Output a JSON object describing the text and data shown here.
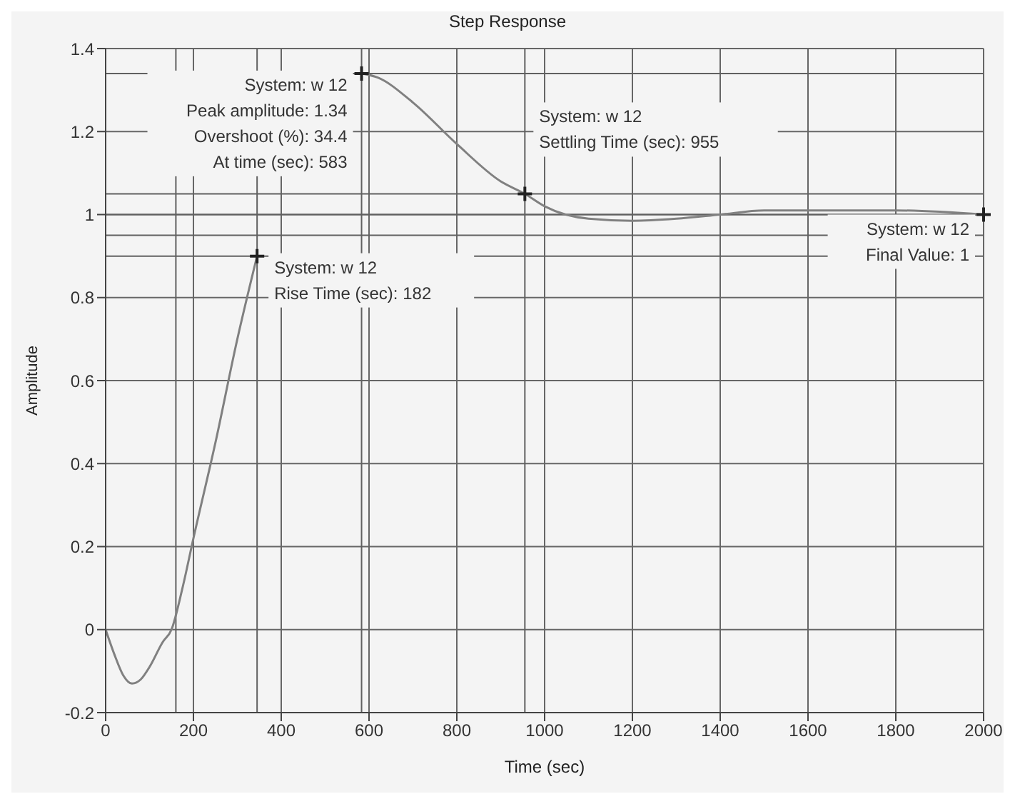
{
  "chart_data": {
    "type": "line",
    "title": "Step Response",
    "xlabel": "Time (sec)",
    "ylabel": "Amplitude",
    "x": [
      0,
      20,
      40,
      60,
      80,
      100,
      130,
      150,
      175,
      200,
      250,
      300,
      345,
      400,
      450,
      500,
      550,
      583,
      620,
      700,
      800,
      900,
      955,
      1000,
      1100,
      1200,
      1300,
      1400,
      1500,
      1600,
      1800,
      2000
    ],
    "series": [
      {
        "color": "#808080",
        "values": [
          0,
          -0.06,
          -0.11,
          -0.13,
          -0.12,
          -0.09,
          -0.03,
          0,
          0.1,
          0.22,
          0.45,
          0.7,
          0.9,
          null,
          null,
          null,
          null,
          1.34,
          1.33,
          1.27,
          1.17,
          1.08,
          1.05,
          1.02,
          0.99,
          0.985,
          0.99,
          1,
          1.01,
          1.01,
          1.01,
          1
        ]
      }
    ],
    "xlim": [
      0,
      2000
    ],
    "xticks": [
      0,
      200,
      400,
      600,
      800,
      1000,
      1200,
      1400,
      1600,
      1800,
      2000
    ],
    "ylim": [
      -0.2,
      1.4
    ],
    "yticks": [
      -0.2,
      0,
      0.2,
      0.4,
      0.6,
      0.8,
      1,
      1.2,
      1.4
    ],
    "grid": true,
    "marker": "none",
    "line_style": "solid",
    "ref_lines": [
      {
        "axis": "x",
        "value": 160,
        "color": "#606060"
      },
      {
        "axis": "x",
        "value": 345,
        "color": "#606060"
      },
      {
        "axis": "x",
        "value": 583,
        "color": "#606060"
      },
      {
        "axis": "x",
        "value": 955,
        "color": "#606060"
      },
      {
        "axis": "y",
        "value": 0.9,
        "color": "#606060"
      },
      {
        "axis": "y",
        "value": 1.34,
        "color": "#606060"
      },
      {
        "axis": "y",
        "value": 0.95,
        "color": "#606060"
      },
      {
        "axis": "y",
        "value": 1.05,
        "color": "#606060"
      },
      {
        "axis": "y",
        "value": 1,
        "color": "#606060"
      }
    ],
    "annotations": [
      {
        "text": "System: w 12\nPeak amplitude: 1.34\nOvershoot (%): 34.4\nAt time (sec): 583",
        "x": 583,
        "y": 1.34
      },
      {
        "text": "System: w 12\nRise Time (sec): 182",
        "x": 345,
        "y": 0.9
      },
      {
        "text": "System: w 12\nSettling Time (sec): 955",
        "x": 955,
        "y": 1.05
      },
      {
        "text": "System: w 12\nFinal Value: 1",
        "x": 2000,
        "y": 1
      }
    ]
  }
}
